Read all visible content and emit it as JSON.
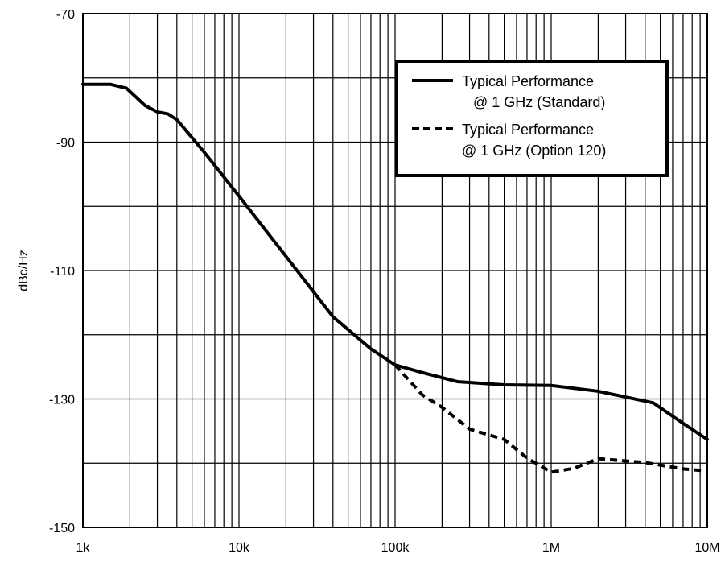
{
  "chart_data": {
    "type": "line",
    "xscale": "log",
    "xlim": [
      1000,
      10000000
    ],
    "ylim": [
      -150,
      -70
    ],
    "ylabel": "dBc/Hz",
    "xlabel": "",
    "grid": true,
    "legend_position": "top-right",
    "x_tick_labels": [
      "1k",
      "10k",
      "100k",
      "1M",
      "10M"
    ],
    "x_tick_values": [
      1000,
      10000,
      100000,
      1000000,
      10000000
    ],
    "y_tick_labels": [
      "-70",
      "-90",
      "-110",
      "-130",
      "-150"
    ],
    "y_tick_values": [
      -70,
      -90,
      -110,
      -130,
      -150
    ],
    "series": [
      {
        "name": "Typical Performance @ 1 GHz (Standard)",
        "legend_line1": "Typical Performance",
        "legend_line2": "@ 1 GHz (Standard)",
        "style": "solid",
        "color": "#000000",
        "x": [
          1000,
          1500,
          1900,
          2500,
          3000,
          3500,
          4000,
          6000,
          10000,
          20000,
          40000,
          70000,
          100000,
          150000,
          250000,
          500000,
          1000000,
          2000000,
          4500000,
          7000000,
          10000000
        ],
        "y": [
          -81,
          -81,
          -81.6,
          -84.3,
          -85.3,
          -85.6,
          -86.5,
          -91.6,
          -98.4,
          -107.8,
          -117.2,
          -122.2,
          -124.7,
          -125.9,
          -127.3,
          -127.8,
          -127.9,
          -128.8,
          -130.6,
          -133.8,
          -136.3
        ]
      },
      {
        "name": "Typical Performance @ 1 GHz (Option 120)",
        "legend_line1": "Typical Performance",
        "legend_line2": "@ 1 GHz (Option 120)",
        "style": "dashed",
        "color": "#000000",
        "x": [
          100000,
          150000,
          200000,
          300000,
          500000,
          700000,
          1000000,
          1400000,
          2000000,
          4000000,
          7000000,
          10000000
        ],
        "y": [
          -124.7,
          -129.4,
          -131.3,
          -134.7,
          -136.3,
          -139.2,
          -141.4,
          -140.8,
          -139.3,
          -139.9,
          -140.9,
          -141.2
        ]
      }
    ]
  }
}
